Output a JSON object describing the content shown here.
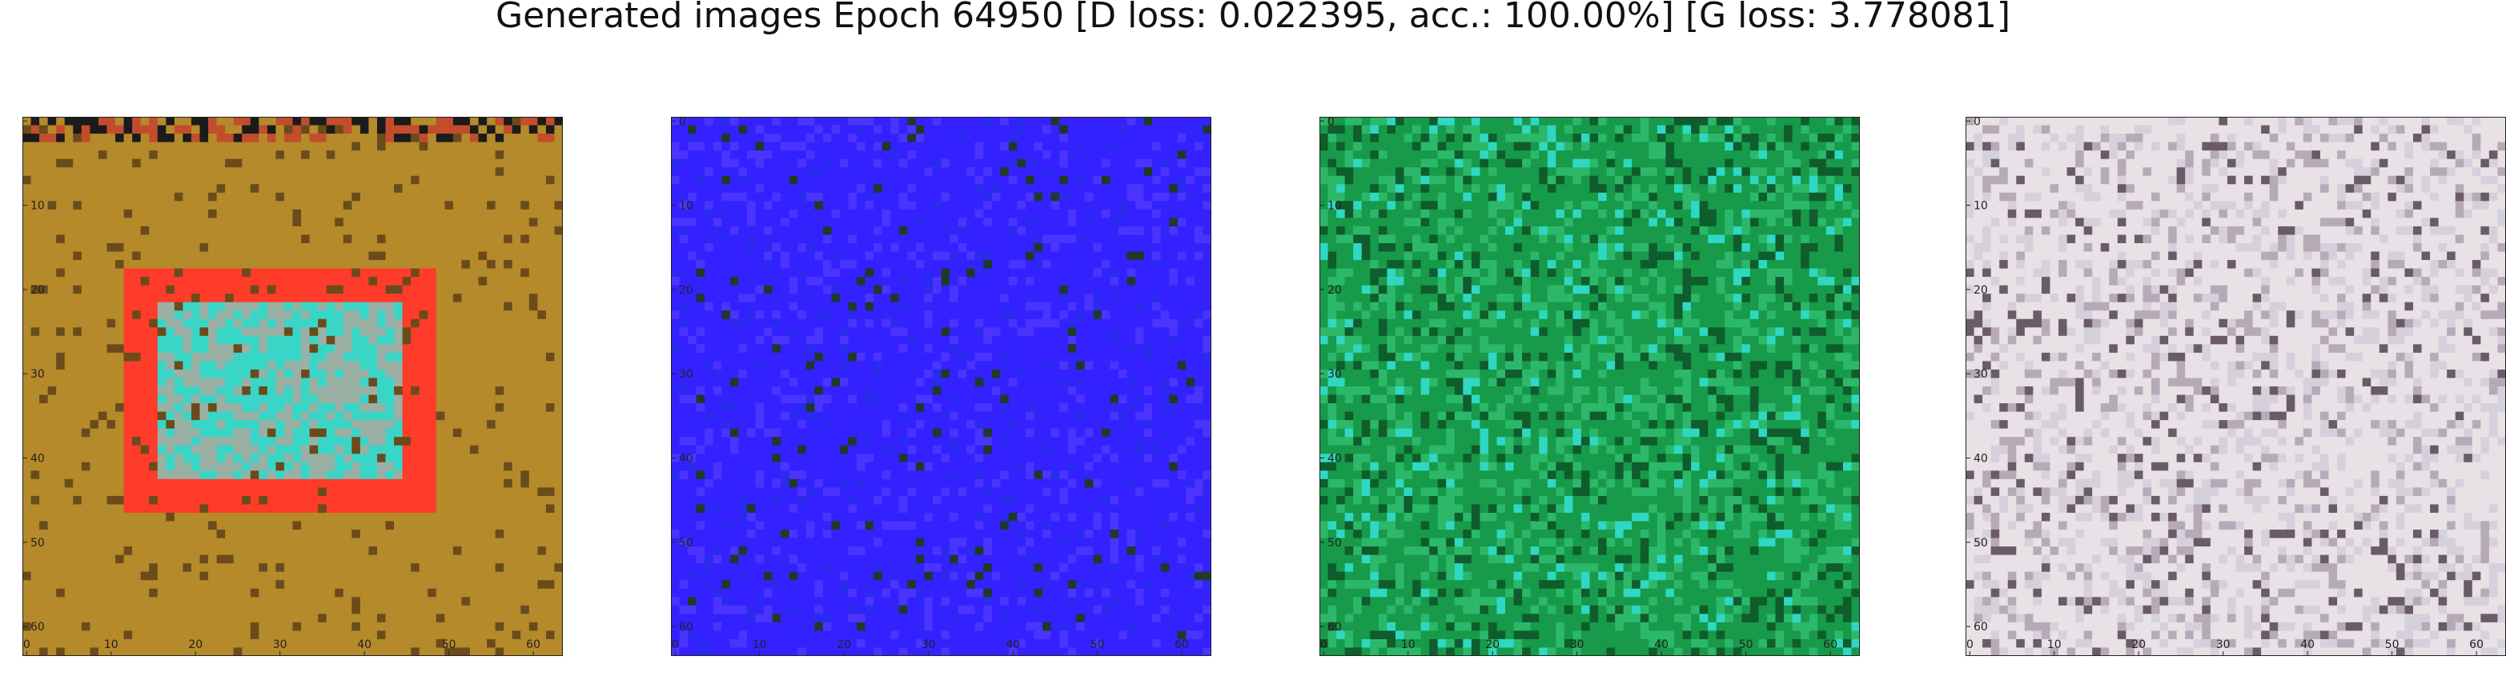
{
  "title": "Generated images Epoch 64950 [D loss: 0.022395, acc.: 100.00%] [G loss: 3.778081]",
  "panels": [
    {
      "name": "generated-image-1",
      "palette": [
        "#b58a2a",
        "#ff3b2a",
        "#39d6c7",
        "#9ab0a4",
        "#6b4b1b"
      ]
    },
    {
      "name": "generated-image-2",
      "palette": [
        "#3322ff",
        "#2a2af0",
        "#4b34ff",
        "#1f3a2a",
        "#5a3dff"
      ]
    },
    {
      "name": "generated-image-3",
      "palette": [
        "#179a4a",
        "#2cb86a",
        "#2fd8c2",
        "#0f5c2c",
        "#6fd6a0"
      ]
    },
    {
      "name": "generated-image-4",
      "palette": [
        "#e8e1e6",
        "#d6d0dc",
        "#b7aab7",
        "#6b5b66",
        "#f6f2f6"
      ]
    }
  ],
  "axis": {
    "x_ticks": [
      "0",
      "10",
      "20",
      "30",
      "40",
      "50",
      "60"
    ],
    "y_ticks": [
      "0",
      "10",
      "20",
      "30",
      "40",
      "50",
      "60"
    ]
  }
}
